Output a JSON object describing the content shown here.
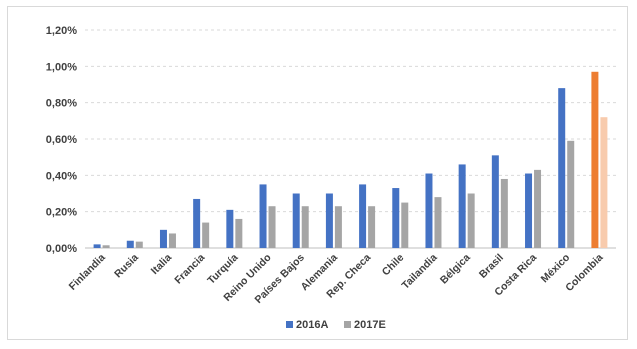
{
  "chart_data": {
    "type": "bar",
    "categories": [
      "Finlandia",
      "Rusia",
      "Italia",
      "Francia",
      "Turquía",
      "Reino Unido",
      "Países Bajos",
      "Alemania",
      "Rep. Checa",
      "Chile",
      "Tailandia",
      "Bélgica",
      "Brasil",
      "Costa Rica",
      "México",
      "Colombia"
    ],
    "series": [
      {
        "name": "2016A",
        "color": "#4472C4",
        "values": [
          0.02,
          0.04,
          0.1,
          0.27,
          0.21,
          0.35,
          0.3,
          0.3,
          0.35,
          0.33,
          0.41,
          0.46,
          0.51,
          0.41,
          0.88,
          0.97
        ]
      },
      {
        "name": "2017E",
        "color": "#A5A5A5",
        "values": [
          0.015,
          0.035,
          0.08,
          0.14,
          0.16,
          0.23,
          0.23,
          0.23,
          0.23,
          0.25,
          0.28,
          0.3,
          0.38,
          0.43,
          0.59,
          0.72
        ]
      }
    ],
    "highlight": {
      "category": "Colombia",
      "colors": [
        "#ED7D31",
        "#F8CBAD"
      ]
    },
    "yticks": [
      "0,00%",
      "0,20%",
      "0,40%",
      "0,60%",
      "0,80%",
      "1,00%",
      "1,20%"
    ],
    "ylim": [
      0,
      1.2
    ],
    "grid": "horizontal dashed",
    "legend_position": "bottom"
  }
}
